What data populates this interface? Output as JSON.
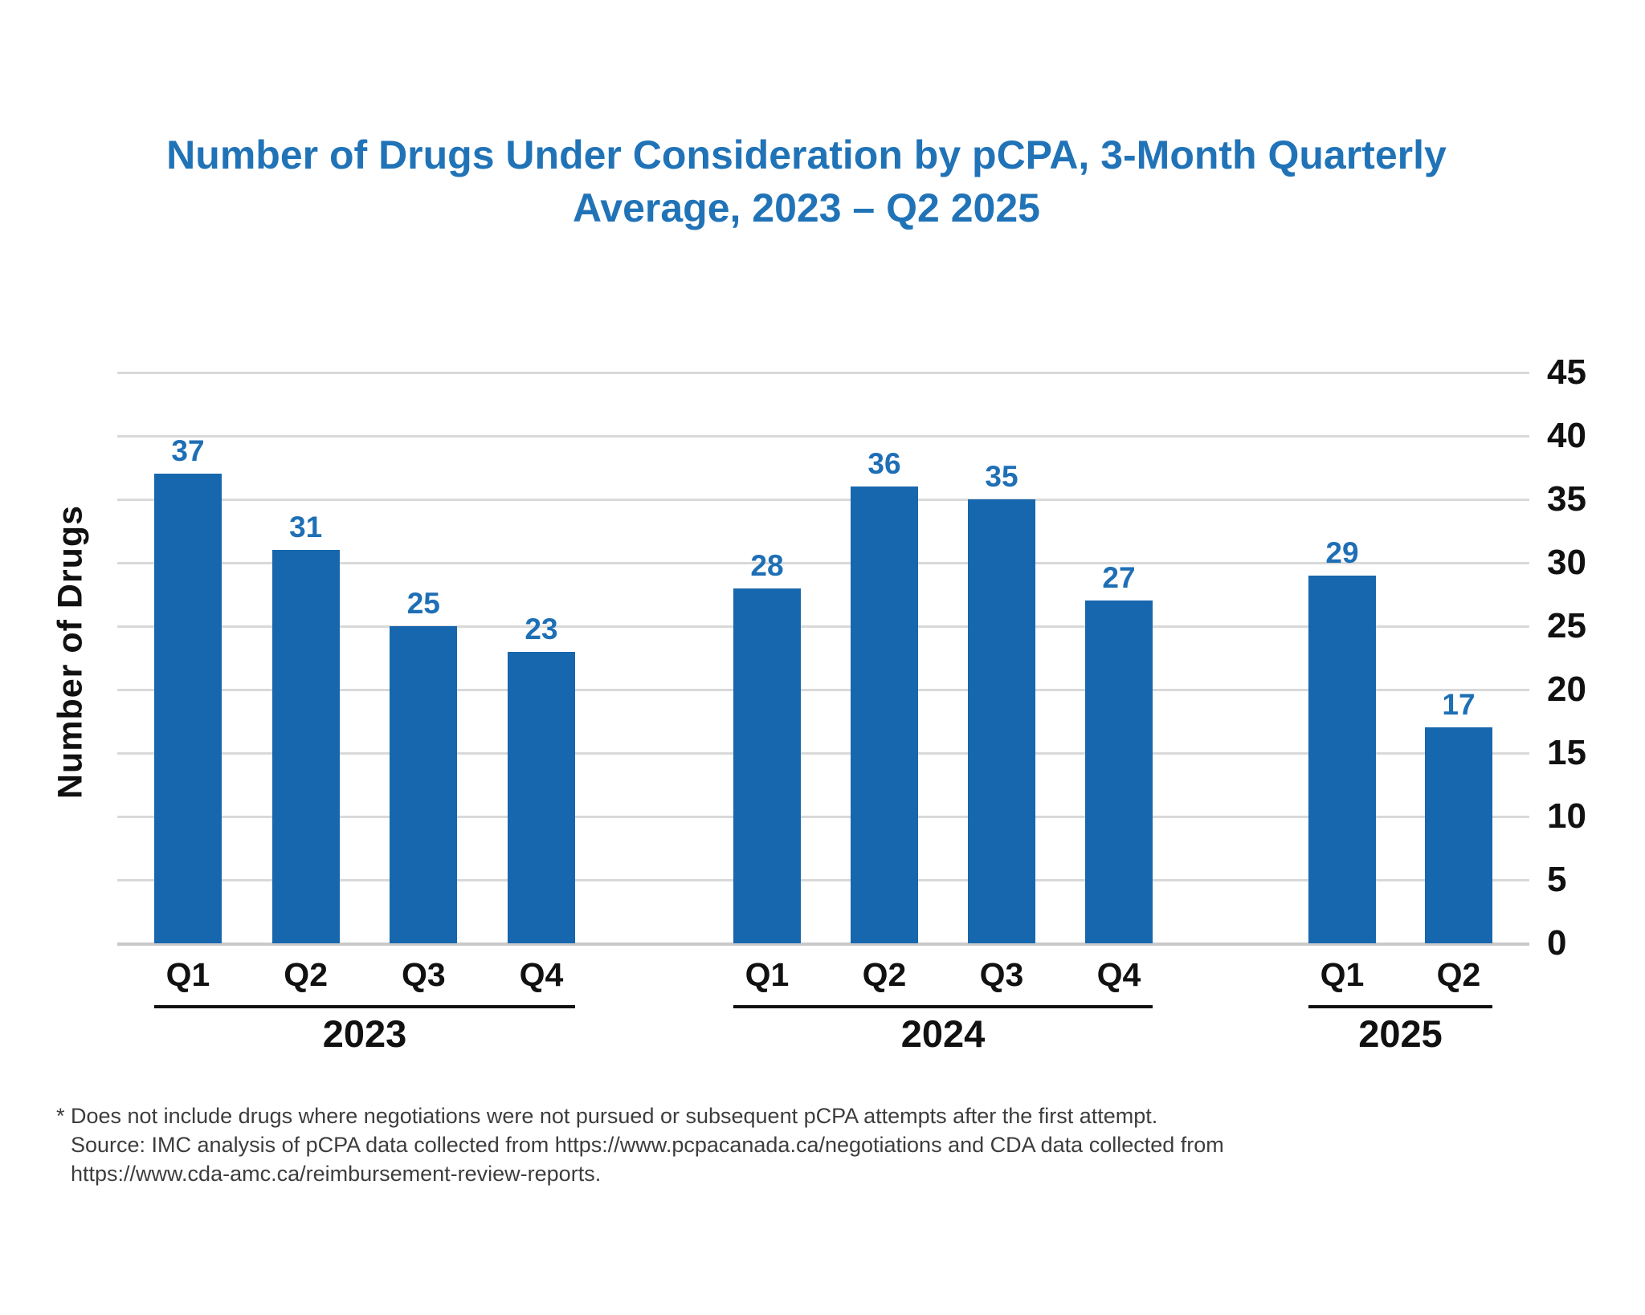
{
  "title": {
    "line1": "Number of Drugs Under Consideration by pCPA, 3-Month Quarterly",
    "line2": "Average, 2023 – Q2 2025"
  },
  "chart_data": {
    "type": "bar",
    "title": "Number of Drugs Under Consideration by pCPA, 3-Month Quarterly Average, 2023 – Q2 2025",
    "ylabel": "Number of Drugs",
    "xlabel": "",
    "ylim": [
      0,
      45
    ],
    "yticks": [
      45,
      40,
      35,
      30,
      25,
      20,
      15,
      10,
      5,
      0
    ],
    "ytick_side": "right",
    "grid": true,
    "legend_position": "none",
    "value_labels_shown": true,
    "groups": [
      {
        "year": "2023",
        "categories": [
          "Q1",
          "Q2",
          "Q3",
          "Q4"
        ],
        "values": [
          37,
          31,
          25,
          23
        ]
      },
      {
        "year": "2024",
        "categories": [
          "Q1",
          "Q2",
          "Q3",
          "Q4"
        ],
        "values": [
          28,
          36,
          35,
          27
        ]
      },
      {
        "year": "2025",
        "categories": [
          "Q1",
          "Q2"
        ],
        "values": [
          29,
          17
        ]
      }
    ],
    "bar_color": "#1767AE",
    "value_label_color": "#1E6FB5",
    "title_color": "#2173B7"
  },
  "footnote": {
    "line1": "* Does not include drugs where negotiations were not pursued or subsequent pCPA attempts after the first attempt.",
    "line2": "Source: IMC analysis of pCPA data collected from https://www.pcpacanada.ca/negotiations and CDA data collected from",
    "line3": "https://www.cda-amc.ca/reimbursement-review-reports."
  }
}
